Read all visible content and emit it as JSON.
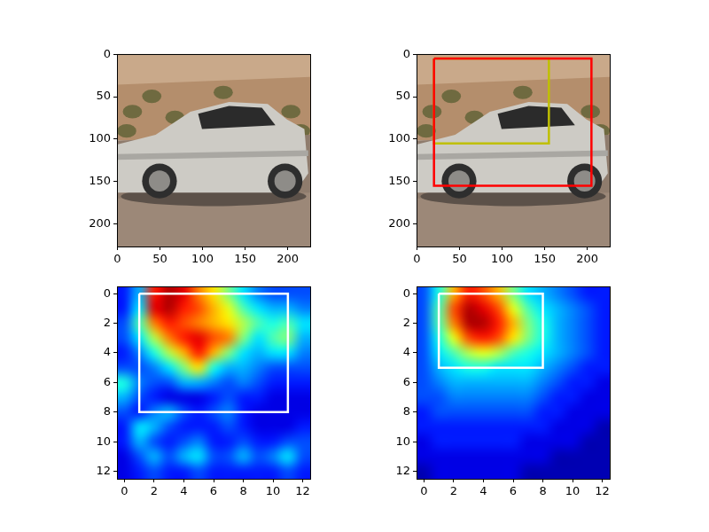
{
  "chart_data": [
    {
      "type": "image",
      "xlim": [
        -0.5,
        226.5
      ],
      "ylim": [
        226.5,
        -0.5
      ],
      "xticks": [
        0,
        50,
        100,
        150,
        200
      ],
      "yticks": [
        0,
        50,
        100,
        150,
        200
      ],
      "grid": false
    },
    {
      "type": "image",
      "xlim": [
        -0.5,
        226.5
      ],
      "ylim": [
        226.5,
        -0.5
      ],
      "xticks": [
        0,
        50,
        100,
        150,
        200
      ],
      "yticks": [
        0,
        50,
        100,
        150,
        200
      ],
      "grid": false,
      "boxes": [
        {
          "color": "#ff0000",
          "x0": 20,
          "x1": 205,
          "y0": 5,
          "y1": 155
        },
        {
          "color": "#bfbf00",
          "x0": 20,
          "x1": 155,
          "y0": 5,
          "y1": 105
        }
      ]
    },
    {
      "type": "heatmap",
      "xlim": [
        -0.5,
        12.5
      ],
      "ylim": [
        12.5,
        -0.5
      ],
      "xticks": [
        0,
        2,
        4,
        6,
        8,
        10,
        12
      ],
      "yticks": [
        0,
        2,
        4,
        6,
        8,
        10,
        12
      ],
      "grid": false,
      "color": "jet",
      "clim": [
        0,
        1
      ],
      "cells": [
        [
          0.15,
          0.3,
          0.85,
          0.95,
          0.9,
          0.75,
          0.65,
          0.5,
          0.35,
          0.25,
          0.2,
          0.2,
          0.2
        ],
        [
          0.15,
          0.35,
          0.9,
          0.95,
          0.85,
          0.8,
          0.7,
          0.6,
          0.45,
          0.35,
          0.3,
          0.3,
          0.25
        ],
        [
          0.2,
          0.45,
          0.75,
          0.85,
          0.8,
          0.75,
          0.7,
          0.65,
          0.55,
          0.45,
          0.4,
          0.45,
          0.35
        ],
        [
          0.2,
          0.35,
          0.55,
          0.75,
          0.85,
          0.9,
          0.8,
          0.75,
          0.5,
          0.35,
          0.45,
          0.5,
          0.3
        ],
        [
          0.15,
          0.25,
          0.4,
          0.55,
          0.7,
          0.85,
          0.7,
          0.5,
          0.35,
          0.3,
          0.35,
          0.35,
          0.25
        ],
        [
          0.2,
          0.2,
          0.25,
          0.35,
          0.5,
          0.65,
          0.4,
          0.3,
          0.3,
          0.25,
          0.2,
          0.2,
          0.2
        ],
        [
          0.4,
          0.25,
          0.2,
          0.2,
          0.3,
          0.3,
          0.25,
          0.2,
          0.25,
          0.2,
          0.15,
          0.15,
          0.15
        ],
        [
          0.3,
          0.2,
          0.15,
          0.1,
          0.1,
          0.1,
          0.15,
          0.2,
          0.15,
          0.15,
          0.1,
          0.1,
          0.1
        ],
        [
          0.2,
          0.15,
          0.25,
          0.3,
          0.2,
          0.15,
          0.2,
          0.25,
          0.15,
          0.1,
          0.1,
          0.1,
          0.1
        ],
        [
          0.15,
          0.35,
          0.3,
          0.2,
          0.15,
          0.15,
          0.15,
          0.2,
          0.15,
          0.1,
          0.1,
          0.1,
          0.15
        ],
        [
          0.15,
          0.3,
          0.2,
          0.15,
          0.2,
          0.25,
          0.15,
          0.15,
          0.2,
          0.15,
          0.15,
          0.2,
          0.2
        ],
        [
          0.1,
          0.2,
          0.3,
          0.2,
          0.3,
          0.35,
          0.2,
          0.2,
          0.3,
          0.2,
          0.25,
          0.35,
          0.2
        ],
        [
          0.1,
          0.15,
          0.2,
          0.15,
          0.15,
          0.2,
          0.15,
          0.15,
          0.15,
          0.15,
          0.15,
          0.2,
          0.15
        ]
      ],
      "boxes": [
        {
          "color": "#ffffff",
          "x0": 1,
          "x1": 11,
          "y0": 0,
          "y1": 8
        }
      ]
    },
    {
      "type": "heatmap",
      "xlim": [
        -0.5,
        12.5
      ],
      "ylim": [
        12.5,
        -0.5
      ],
      "xticks": [
        0,
        2,
        4,
        6,
        8,
        10,
        12
      ],
      "yticks": [
        0,
        2,
        4,
        6,
        8,
        10,
        12
      ],
      "grid": false,
      "color": "jet",
      "clim": [
        0,
        1
      ],
      "cells": [
        [
          0.2,
          0.4,
          0.7,
          0.85,
          0.8,
          0.7,
          0.5,
          0.35,
          0.3,
          0.25,
          0.2,
          0.15,
          0.15
        ],
        [
          0.2,
          0.45,
          0.8,
          0.95,
          0.9,
          0.8,
          0.6,
          0.45,
          0.35,
          0.3,
          0.25,
          0.2,
          0.15
        ],
        [
          0.2,
          0.45,
          0.75,
          0.95,
          0.95,
          0.85,
          0.7,
          0.5,
          0.4,
          0.3,
          0.25,
          0.2,
          0.15
        ],
        [
          0.2,
          0.4,
          0.6,
          0.8,
          0.85,
          0.8,
          0.65,
          0.5,
          0.4,
          0.3,
          0.25,
          0.2,
          0.15
        ],
        [
          0.2,
          0.35,
          0.45,
          0.55,
          0.6,
          0.55,
          0.45,
          0.4,
          0.35,
          0.3,
          0.25,
          0.2,
          0.15
        ],
        [
          0.2,
          0.3,
          0.35,
          0.4,
          0.4,
          0.35,
          0.35,
          0.35,
          0.3,
          0.25,
          0.2,
          0.15,
          0.15
        ],
        [
          0.2,
          0.25,
          0.3,
          0.3,
          0.3,
          0.3,
          0.3,
          0.3,
          0.25,
          0.2,
          0.15,
          0.15,
          0.1
        ],
        [
          0.2,
          0.2,
          0.25,
          0.25,
          0.25,
          0.25,
          0.25,
          0.25,
          0.2,
          0.15,
          0.15,
          0.1,
          0.1
        ],
        [
          0.15,
          0.2,
          0.2,
          0.2,
          0.2,
          0.2,
          0.2,
          0.2,
          0.15,
          0.15,
          0.1,
          0.1,
          0.1
        ],
        [
          0.15,
          0.15,
          0.15,
          0.15,
          0.15,
          0.15,
          0.15,
          0.15,
          0.15,
          0.1,
          0.1,
          0.1,
          0.05
        ],
        [
          0.1,
          0.15,
          0.15,
          0.15,
          0.15,
          0.15,
          0.15,
          0.1,
          0.1,
          0.1,
          0.1,
          0.05,
          0.05
        ],
        [
          0.1,
          0.1,
          0.1,
          0.1,
          0.1,
          0.1,
          0.1,
          0.1,
          0.1,
          0.05,
          0.05,
          0.05,
          0.05
        ],
        [
          0.05,
          0.1,
          0.1,
          0.1,
          0.1,
          0.1,
          0.1,
          0.05,
          0.05,
          0.05,
          0.05,
          0.05,
          0.05
        ]
      ],
      "boxes": [
        {
          "color": "#ffffff",
          "x0": 1,
          "x1": 8,
          "y0": 0,
          "y1": 5
        }
      ]
    }
  ]
}
